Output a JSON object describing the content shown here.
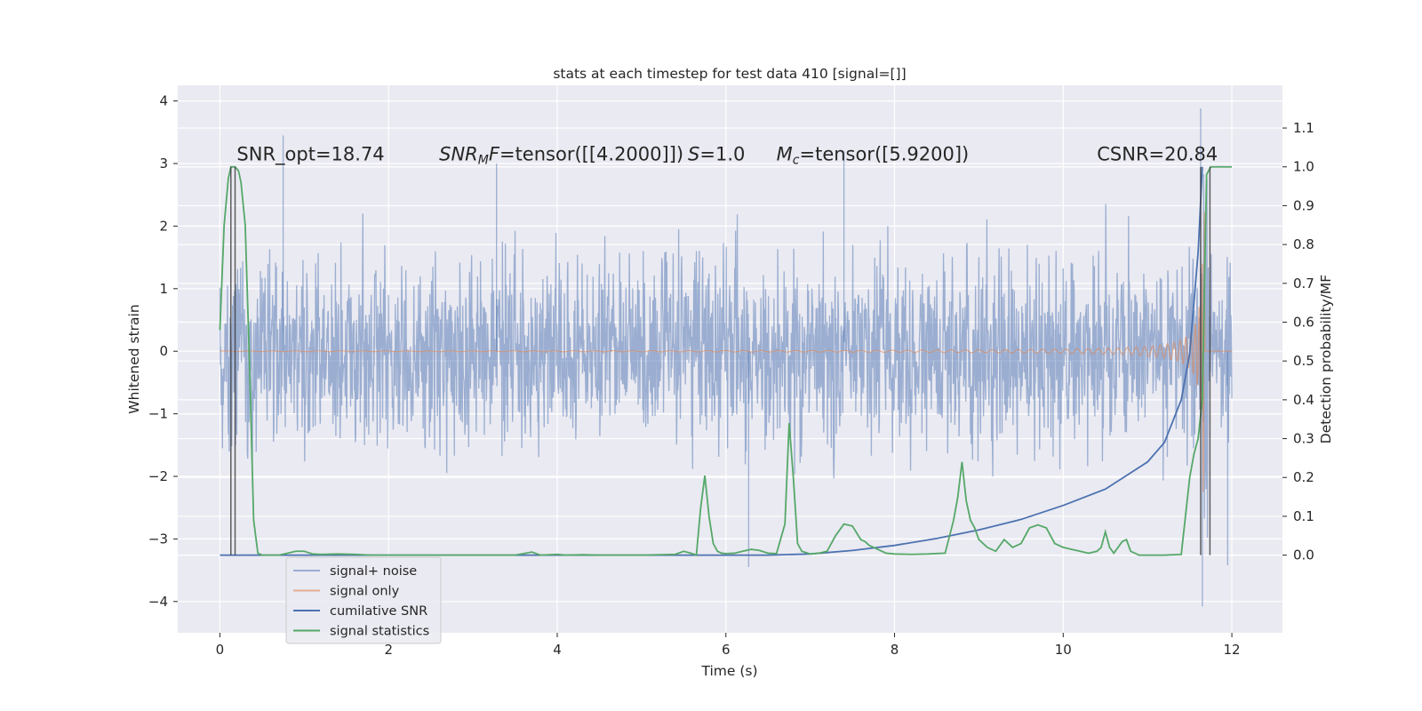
{
  "chart_data": {
    "type": "line",
    "title": "stats at each timestep for test data 410 [signal=[]]",
    "xlabel": "Time (s)",
    "ylabel": "Whitened strain",
    "y2label": "Detection probability/MF",
    "xlim": [
      -0.5,
      12.6
    ],
    "ylim": [
      -4.5,
      4.25
    ],
    "y2lim": [
      -0.2,
      1.21
    ],
    "xticks": [
      0,
      2,
      4,
      6,
      8,
      10,
      12
    ],
    "yticks": [
      -4,
      -3,
      -2,
      -1,
      0,
      1,
      2,
      3,
      4
    ],
    "y2ticks": [
      0.0,
      0.1,
      0.2,
      0.3,
      0.4,
      0.5,
      0.6,
      0.7,
      0.8,
      0.9,
      1.0,
      1.1
    ],
    "grid": true,
    "annotations": [
      {
        "name": "snr-opt",
        "text": "SNR_opt=18.74",
        "x": 0.2,
        "y": 3.15
      },
      {
        "name": "snr-mf",
        "text": "SNRMF=tensor([[4.2000]])",
        "x": 2.6,
        "y": 3.15
      },
      {
        "name": "s-value",
        "text": "S=1.0",
        "x": 5.55,
        "y": 3.15
      },
      {
        "name": "mc-value",
        "text": "Mc=tensor([5.9200])",
        "x": 6.6,
        "y": 3.15
      },
      {
        "name": "csnr",
        "text": "CSNR=20.84",
        "x": 10.4,
        "y": 3.15
      }
    ],
    "vertical_markers": [
      0.13,
      0.18,
      11.63,
      11.74
    ],
    "series": [
      {
        "name": "signal+ noise",
        "color": "#4c72b0",
        "description": "whitened strain, noise-dominated, approx std 0.8 between about -4.1 and 3.9 over 0 to 12 s",
        "range": [
          -4.1,
          3.9
        ],
        "t_range": [
          0,
          12
        ]
      },
      {
        "name": "signal only",
        "color": "#dd8452",
        "description": "chirp signal, amplitude growing from ~0 to ~3 near merger at 11.68 s",
        "t_merger": 11.68,
        "peak_amplitude": 3.1
      },
      {
        "name": "cumilative SNR",
        "color": "#4c72b0",
        "x": [
          0,
          6.5,
          7.0,
          7.5,
          8.0,
          8.5,
          9.0,
          9.5,
          10.0,
          10.5,
          11.0,
          11.2,
          11.4,
          11.5,
          11.6,
          11.65
        ],
        "y": [
          0,
          0,
          0.003,
          0.012,
          0.025,
          0.043,
          0.065,
          0.092,
          0.128,
          0.17,
          0.24,
          0.29,
          0.4,
          0.52,
          0.78,
          1.0
        ]
      },
      {
        "name": "signal statistics",
        "color": "#55a868",
        "x": [
          0,
          0.05,
          0.1,
          0.13,
          0.18,
          0.22,
          0.25,
          0.3,
          0.35,
          0.4,
          0.45,
          0.5,
          0.6,
          0.7,
          0.8,
          0.9,
          1.0,
          1.1,
          1.2,
          1.4,
          1.6,
          1.8,
          2.0,
          2.5,
          3.0,
          3.5,
          3.7,
          3.8,
          4.0,
          4.1,
          4.3,
          4.5,
          5.0,
          5.4,
          5.5,
          5.6,
          5.65,
          5.7,
          5.75,
          5.8,
          5.85,
          5.9,
          5.95,
          6.0,
          6.1,
          6.2,
          6.3,
          6.4,
          6.5,
          6.6,
          6.7,
          6.75,
          6.8,
          6.85,
          6.9,
          7.0,
          7.1,
          7.2,
          7.3,
          7.4,
          7.5,
          7.6,
          7.65,
          7.7,
          7.8,
          7.9,
          8.0,
          8.2,
          8.4,
          8.6,
          8.7,
          8.75,
          8.8,
          8.85,
          8.9,
          8.95,
          9.0,
          9.1,
          9.2,
          9.3,
          9.4,
          9.5,
          9.6,
          9.7,
          9.8,
          9.9,
          10.0,
          10.1,
          10.2,
          10.3,
          10.4,
          10.45,
          10.5,
          10.55,
          10.6,
          10.7,
          10.75,
          10.8,
          10.85,
          10.9,
          11.0,
          11.2,
          11.4,
          11.5,
          11.55,
          11.6,
          11.65,
          11.7,
          11.75,
          11.8,
          11.85,
          12.0
        ],
        "y": [
          0.58,
          0.85,
          0.97,
          1.0,
          1.0,
          0.99,
          0.96,
          0.85,
          0.5,
          0.09,
          0.005,
          0.0,
          0.0,
          0.0,
          0.005,
          0.01,
          0.01,
          0.003,
          0.002,
          0.003,
          0.002,
          0.0,
          0.0,
          0.0,
          0.0,
          0.0,
          0.008,
          0.0,
          0.002,
          0.0,
          0.001,
          0.0,
          0.0,
          0.002,
          0.01,
          0.004,
          0.0,
          0.12,
          0.205,
          0.1,
          0.03,
          0.01,
          0.005,
          0.004,
          0.005,
          0.01,
          0.015,
          0.012,
          0.005,
          0.004,
          0.08,
          0.34,
          0.2,
          0.03,
          0.01,
          0.003,
          0.005,
          0.01,
          0.05,
          0.08,
          0.075,
          0.04,
          0.035,
          0.025,
          0.015,
          0.005,
          0.003,
          0.002,
          0.003,
          0.005,
          0.09,
          0.15,
          0.24,
          0.14,
          0.09,
          0.07,
          0.04,
          0.02,
          0.01,
          0.04,
          0.02,
          0.03,
          0.07,
          0.078,
          0.07,
          0.03,
          0.02,
          0.015,
          0.01,
          0.005,
          0.01,
          0.02,
          0.06,
          0.02,
          0.005,
          0.035,
          0.04,
          0.01,
          0.005,
          0.0,
          0.0,
          0.0,
          0.002,
          0.2,
          0.26,
          0.3,
          0.4,
          0.98,
          1.0,
          1.0,
          1.0,
          1.0
        ]
      }
    ],
    "legend": {
      "position": "lower-left",
      "entries": [
        {
          "label": "signal+ noise",
          "color": "#4c72b0",
          "alpha": 0.5
        },
        {
          "label": "signal only",
          "color": "#dd8452",
          "alpha": 0.6
        },
        {
          "label": "cumilative SNR",
          "color": "#4c72b0",
          "alpha": 1
        },
        {
          "label": "signal statistics",
          "color": "#55a868",
          "alpha": 1
        }
      ]
    }
  },
  "colors": {
    "axes_bg": "#eaeaf2",
    "grid": "#ffffff",
    "noise": "#4c72b0",
    "signal": "#dd8452",
    "csnr": "#4c72b0",
    "stats": "#55a868",
    "marker": "#3a3a3a"
  }
}
